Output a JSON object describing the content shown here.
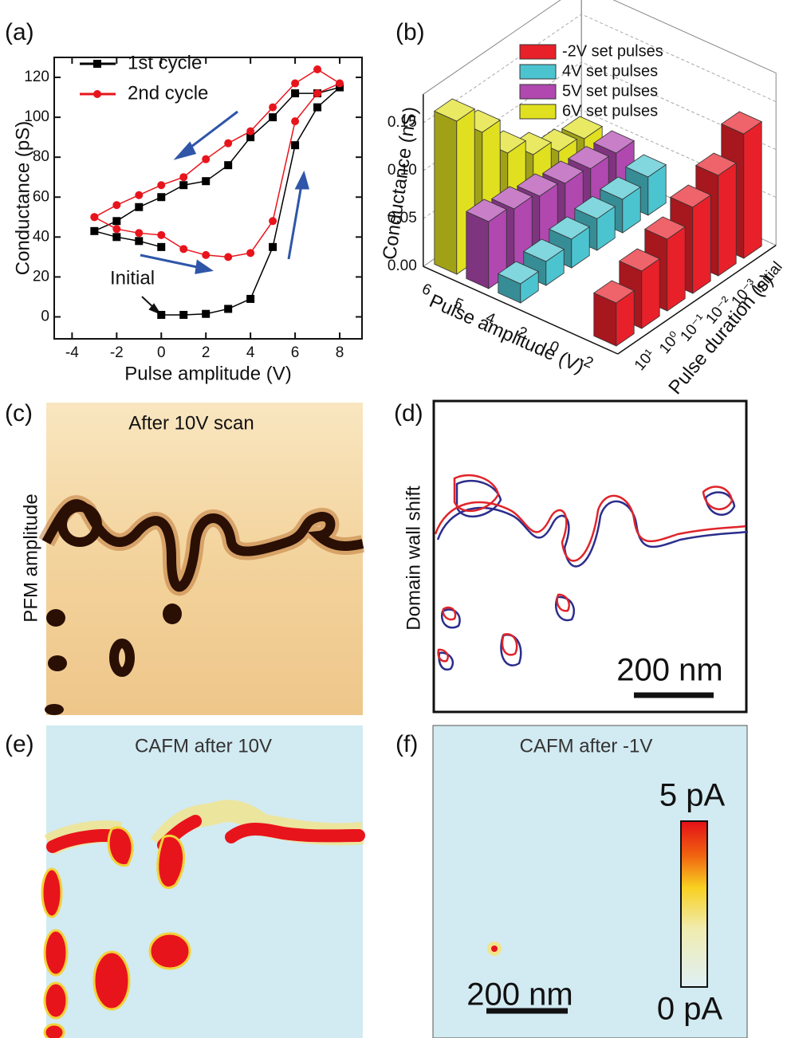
{
  "chart_data": [
    {
      "type": "line",
      "label": "(a)",
      "xlabel": "Pulse amplitude (V)",
      "ylabel": "Conductance (pS)",
      "annotation": "Initial",
      "xlim": [
        -4.8,
        9
      ],
      "ylim": [
        -11,
        130
      ],
      "xticks": [
        -4,
        -2,
        0,
        2,
        4,
        6,
        8
      ],
      "yticks": [
        0,
        20,
        40,
        60,
        80,
        100,
        120
      ],
      "series": [
        {
          "name": "1st cycle",
          "color": "#000000",
          "marker": "square",
          "x": [
            0,
            1,
            2,
            3,
            4,
            5,
            6,
            7,
            8,
            7,
            6,
            5,
            4,
            3,
            2,
            1,
            0,
            -1,
            -2,
            -3,
            -2,
            -1,
            0
          ],
          "values": [
            1,
            1,
            1.5,
            4,
            9,
            35,
            86,
            105,
            115,
            112,
            112,
            100,
            90,
            76,
            68,
            66,
            60,
            55,
            48,
            43,
            40,
            38,
            35
          ]
        },
        {
          "name": "2nd cycle",
          "color": "#e8141c",
          "marker": "circle",
          "x": [
            -3,
            -2,
            -1,
            0,
            1,
            2,
            3,
            4,
            5,
            6,
            7,
            8,
            7,
            6,
            5,
            4,
            3,
            2,
            1,
            0,
            -1,
            -2,
            -3
          ],
          "values": [
            50,
            44,
            42,
            41,
            34,
            31,
            30,
            32,
            48,
            98,
            112,
            117,
            124,
            117,
            105,
            93,
            87,
            79,
            70,
            66,
            61,
            56,
            50
          ]
        }
      ]
    },
    {
      "type": "bar3d",
      "label": "(b)",
      "zlabel": "Conductance (nS)",
      "xlabel": "Pulse duration (s)",
      "ylabel": "Pulse amplitude (V)",
      "categories": [
        "10¹",
        "10⁰",
        "10⁻¹",
        "10⁻²",
        "10⁻³",
        "Initial"
      ],
      "depth_ticks": [
        6,
        5,
        4,
        2,
        0,
        -2
      ],
      "zlim": [
        0,
        0.18
      ],
      "zticks": [
        {
          "value": 0,
          "label": "0.00"
        },
        {
          "value": 0.05,
          "label": "0.05"
        },
        {
          "value": 0.1,
          "label": "0.10"
        },
        {
          "value": 0.15,
          "label": "0.15"
        }
      ],
      "series": [
        {
          "name": "-2V set pulses",
          "color": "#e8202a",
          "values": [
            0.045,
            0.06,
            0.075,
            0.09,
            0.105,
            0.13
          ]
        },
        {
          "name": "4V set pulses",
          "color": "#4cc4d0",
          "values": [
            0.02,
            0.025,
            0.03,
            0.033,
            0.035,
            0.04
          ]
        },
        {
          "name": "5V set pulses",
          "color": "#b048b0",
          "values": [
            0.07,
            0.065,
            0.06,
            0.055,
            0.052,
            0.05
          ]
        },
        {
          "name": "6V set pulses",
          "color": "#e0e020",
          "values": [
            0.16,
            0.13,
            0.09,
            0.07,
            0.055,
            0.05
          ]
        }
      ]
    }
  ],
  "images": {
    "c": {
      "label": "(c)",
      "title": "After 10V scan",
      "ylabel": "PFM amplitude"
    },
    "d": {
      "label": "(d)",
      "ylabel": "Domain wall shift",
      "scalebar": "200 nm"
    },
    "e": {
      "label": "(e)",
      "title": "CAFM after 10V"
    },
    "f": {
      "label": "(f)",
      "title": "CAFM after -1V",
      "colorbar_max": "5 pA",
      "colorbar_min": "0 pA",
      "scalebar": "200 nm"
    }
  }
}
